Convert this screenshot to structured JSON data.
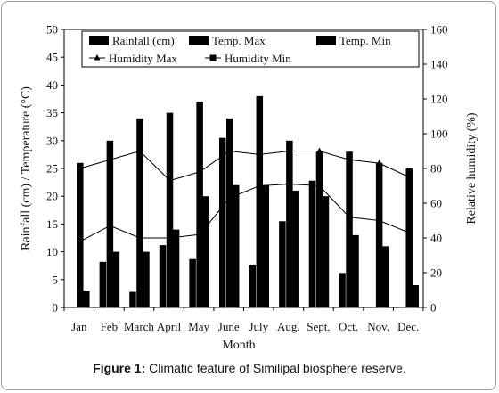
{
  "caption": {
    "label": "Figure 1:",
    "text": "Climatic feature of Similipal biosphere reserve."
  },
  "chart_data": {
    "type": "bar",
    "categories": [
      "Jan",
      "Feb",
      "March",
      "April",
      "May",
      "June",
      "July",
      "Aug.",
      "Sept.",
      "Oct.",
      "Nov.",
      "Dec."
    ],
    "xlabel": "Month",
    "ylabel": "Rainfall (cm) / Temperature (°C)",
    "y2label": "Relative humidity (%)",
    "ylim": [
      0,
      50
    ],
    "y2lim": [
      0,
      160
    ],
    "yticks": [
      "0",
      "5",
      "10",
      "15",
      "20",
      "25",
      "30",
      "35",
      "40",
      "45",
      "50"
    ],
    "y2ticks": [
      "0",
      "20",
      "40",
      "60",
      "80",
      "100",
      "120",
      "140",
      "160"
    ],
    "legend_position": "top",
    "series": [
      {
        "name": "Rainfall (cm)",
        "kind": "bar",
        "axis": "left",
        "values": [
          0,
          8.2,
          2.8,
          11.2,
          8.7,
          30.5,
          7.7,
          15.5,
          22.8,
          6.2,
          0,
          0
        ]
      },
      {
        "name": "Temp. Max",
        "kind": "bar",
        "axis": "left",
        "values": [
          26,
          30,
          34,
          35,
          37,
          34,
          38,
          30,
          28,
          28,
          26,
          25
        ]
      },
      {
        "name": "Temp. Min",
        "kind": "bar",
        "axis": "left",
        "values": [
          3,
          10,
          10,
          14,
          20,
          22,
          22,
          21,
          20,
          13,
          11,
          4
        ]
      },
      {
        "name": "Humidity Max",
        "kind": "line",
        "marker": "triangle",
        "axis": "right",
        "values": [
          80,
          85,
          90,
          73,
          78,
          90,
          88,
          90,
          90,
          85,
          83,
          75
        ]
      },
      {
        "name": "Humidity Min",
        "kind": "line",
        "marker": "square",
        "axis": "right",
        "values": [
          38,
          47,
          40,
          40,
          42,
          63,
          70,
          71,
          70,
          52,
          50,
          43
        ]
      }
    ]
  }
}
